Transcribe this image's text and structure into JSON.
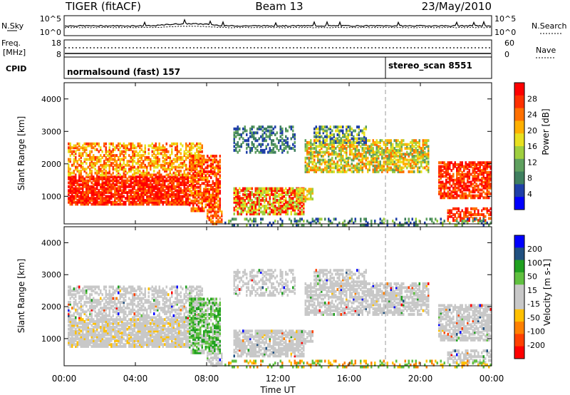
{
  "header": {
    "radar": "TIGER (fitACF)",
    "beam": "Beam 13",
    "date": "23/May/2010"
  },
  "top_panels": {
    "nsky": {
      "label": "N.Sky",
      "ticks": [
        "10^5",
        "10^0"
      ]
    },
    "nsearch": {
      "label": "N.Search",
      "ticks": [
        "10^5",
        "10^0"
      ]
    },
    "freq": {
      "label_line1": "Freq.",
      "label_line2": "[MHz]",
      "ticks": [
        "18",
        "8"
      ]
    },
    "nave": {
      "label": "Nave",
      "ticks": [
        "60",
        "0"
      ]
    },
    "cpid": {
      "label": "CPID",
      "segments": [
        {
          "text": "normalsound (fast) 157"
        },
        {
          "text": "stereo_scan 8551"
        }
      ]
    }
  },
  "colors": {
    "power_scale": [
      "#0000ff",
      "#1f3fa8",
      "#3f7f5f",
      "#5fa05f",
      "#9fcf3f",
      "#e8e020",
      "#ffb000",
      "#ff7000",
      "#ff3000",
      "#ff0000"
    ],
    "velocity_scale": [
      "#ff0000",
      "#ff4000",
      "#ff8000",
      "#ffc000",
      "#c8c8c8",
      "#c8c8c8",
      "#60c040",
      "#20a020",
      "#205080",
      "#0000ff"
    ]
  },
  "chart_data": [
    {
      "type": "heatmap",
      "name": "power",
      "ylabel": "Slant Range [km]",
      "yticks": [
        "4000",
        "3000",
        "2000",
        "1000"
      ],
      "ylim": [
        150,
        4500
      ],
      "xlim": [
        0,
        24
      ],
      "colorbar": {
        "label": "Power [dB]",
        "ticks": [
          "28",
          "24",
          "20",
          "16",
          "12",
          "8",
          "4"
        ]
      }
    },
    {
      "type": "heatmap",
      "name": "velocity",
      "ylabel": "Slant Range [km]",
      "yticks": [
        "4000",
        "3000",
        "2000",
        "1000"
      ],
      "ylim": [
        150,
        4500
      ],
      "xlim": [
        0,
        24
      ],
      "xlabel": "Time UT",
      "xticks": [
        "00:00",
        "04:00",
        "08:00",
        "12:00",
        "16:00",
        "20:00",
        "00:00"
      ],
      "colorbar": {
        "label": "Velocity [m s-1]",
        "ticks": [
          "200",
          "100",
          "50",
          "15",
          "-15",
          "-50",
          "-100",
          "-200"
        ]
      }
    }
  ]
}
